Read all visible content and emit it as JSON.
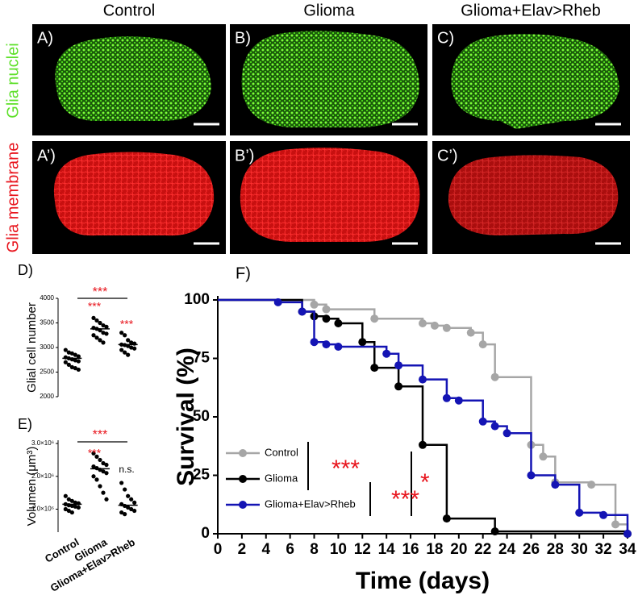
{
  "figure": {
    "column_titles": [
      "Control",
      "Glioma",
      "Glioma+Elav>Rheb"
    ],
    "row_labels": [
      "Glia nuclei",
      "Glia membrane"
    ],
    "panels": [
      "A)",
      "B)",
      "C)",
      "A’)",
      "B’)",
      "C’)"
    ]
  },
  "chart_data": [
    {
      "type": "dot",
      "label": "D)",
      "ylabel": "Glial cell number",
      "groups": [
        {
          "values": [
            2950,
            2900,
            2880,
            2850,
            2820,
            2800,
            2780,
            2760,
            2740,
            2720,
            2700,
            2650,
            2600,
            2580,
            2550
          ]
        },
        {
          "values": [
            3600,
            3550,
            3500,
            3450,
            3420,
            3400,
            3380,
            3350,
            3300,
            3280,
            3250,
            3200,
            3150,
            3100
          ]
        },
        {
          "values": [
            3300,
            3250,
            3150,
            3100,
            3080,
            3060,
            3050,
            3030,
            3000,
            2980,
            2950,
            2900,
            2850
          ]
        }
      ],
      "means": [
        2780,
        3380,
        3060
      ],
      "color": "#000000",
      "ylim": [
        2000,
        4000
      ],
      "yticks": [
        2000,
        2500,
        3000,
        3500,
        4000
      ],
      "annotations": [
        "***",
        "***",
        "***"
      ],
      "annotation_color": "#e8141c"
    },
    {
      "type": "dot",
      "label": "E)",
      "ylabel": "Volumen (μm³)",
      "categories": [
        "Control",
        "Glioma",
        "Glioma+Elav>Rheb"
      ],
      "groups": [
        {
          "values": [
            1400000,
            1300000,
            1250000,
            1200000,
            1180000,
            1150000,
            1120000,
            1100000,
            1080000,
            1050000,
            1000000,
            950000,
            900000
          ]
        },
        {
          "values": [
            2700000,
            2600000,
            2500000,
            2400000,
            2350000,
            2300000,
            2250000,
            2200000,
            2150000,
            2100000,
            2000000,
            1900000,
            1700000,
            1500000,
            1300000
          ]
        },
        {
          "values": [
            1800000,
            1600000,
            1400000,
            1300000,
            1200000,
            1150000,
            1100000,
            1050000,
            1000000,
            950000,
            900000,
            850000
          ]
        }
      ],
      "means": [
        1150000,
        2230000,
        1120000
      ],
      "color": "#000000",
      "ylim": [
        300000,
        3100000
      ],
      "yticks": [
        {
          "value": 1000000,
          "label": "1.0×10⁶"
        },
        {
          "value": 2000000,
          "label": "2.0×10⁶"
        },
        {
          "value": 3000000,
          "label": "3.0×10⁶"
        }
      ],
      "annotations": [
        "***",
        "***",
        "n.s."
      ],
      "annotation_color": "#e8141c"
    },
    {
      "type": "step",
      "label": "F)",
      "xlabel": "Time (days)",
      "ylabel": "Survival (%)",
      "xlim": [
        0,
        34
      ],
      "xticks": [
        0,
        2,
        4,
        6,
        8,
        10,
        12,
        14,
        16,
        18,
        20,
        22,
        24,
        26,
        28,
        30,
        32,
        34
      ],
      "ylim": [
        0,
        100
      ],
      "yticks": [
        0,
        25,
        50,
        75,
        100
      ],
      "series": [
        {
          "name": "Control",
          "color": "#a6a6a6",
          "x": [
            0,
            8,
            9,
            13,
            17,
            18,
            19,
            21,
            22,
            23,
            26,
            27,
            28,
            31,
            33,
            34
          ],
          "values": [
            100,
            98,
            96,
            92,
            90,
            89,
            88,
            86,
            81,
            67,
            38,
            33,
            22,
            21,
            4,
            0
          ]
        },
        {
          "name": "Glioma",
          "color": "#000000",
          "x": [
            0,
            7,
            8,
            9,
            10,
            12,
            13,
            15,
            17,
            19,
            23,
            34
          ],
          "values": [
            100,
            95,
            93,
            92,
            90,
            82,
            71,
            63,
            38,
            6.5,
            1,
            0
          ]
        },
        {
          "name": "Glioma+Elav>Rheb",
          "color": "#1414b4",
          "x": [
            0,
            5,
            7,
            8,
            9,
            10,
            14,
            15,
            17,
            19,
            20,
            22,
            23,
            24,
            26,
            28,
            30,
            32,
            34
          ],
          "values": [
            100,
            99,
            95,
            82,
            81,
            80,
            77,
            72,
            66,
            58,
            57,
            48,
            46,
            43,
            25,
            21,
            9,
            8,
            0
          ]
        }
      ],
      "annotations": [
        "***",
        "***",
        "*"
      ],
      "annotation_color": "#e8141c"
    }
  ]
}
